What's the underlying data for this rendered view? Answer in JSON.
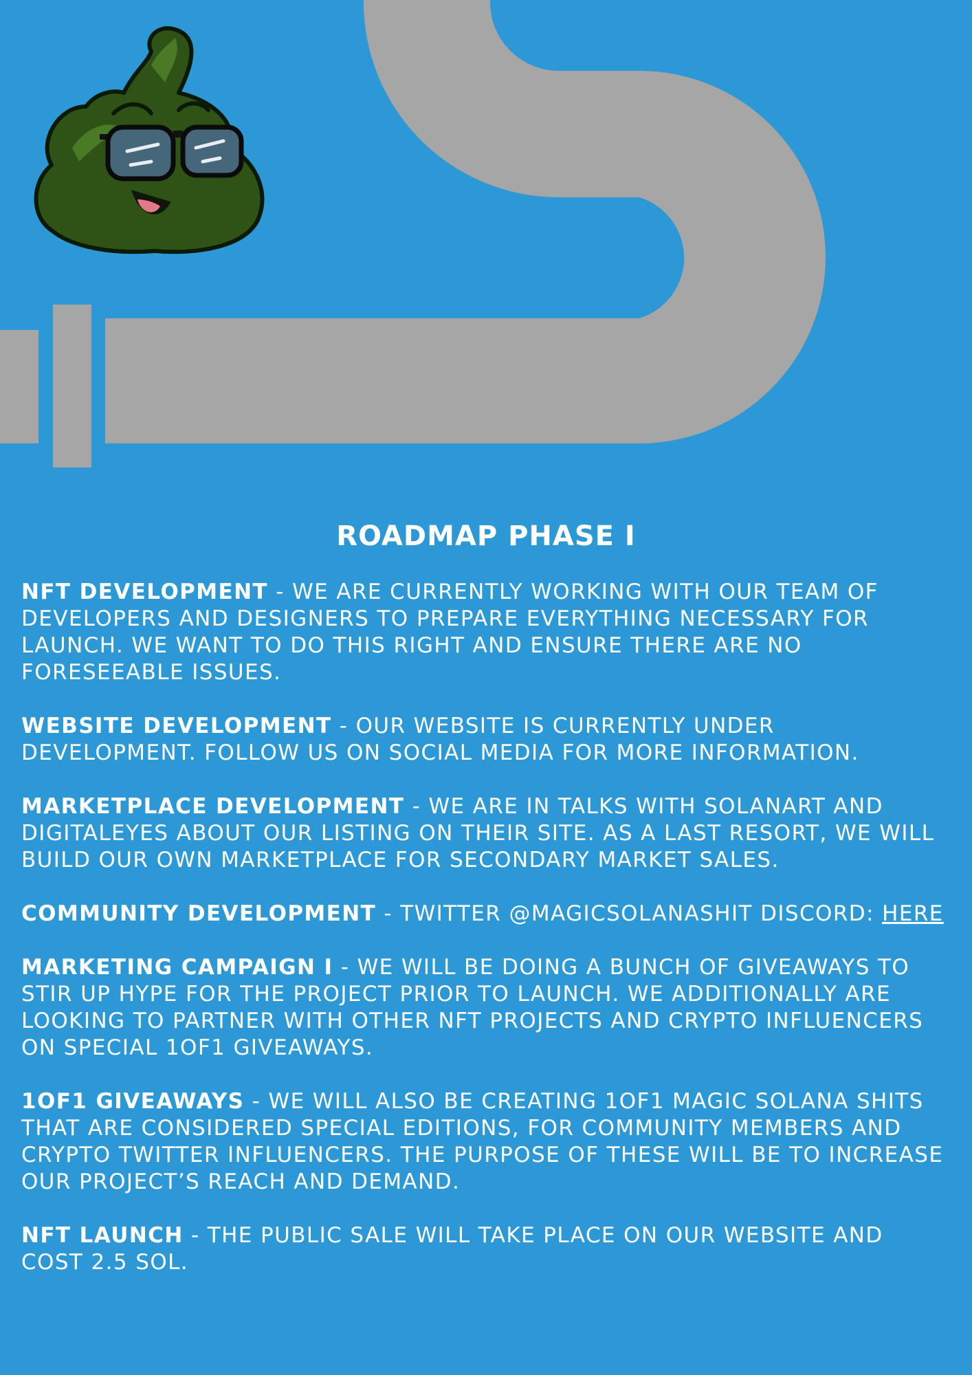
{
  "colors": {
    "background": "#2c98d6",
    "pipe": "#a6a6a6",
    "text": "#ffffff",
    "mascot_body": "#2f5217"
  },
  "mascot": {
    "icon": "poop-mascot-with-glasses-icon"
  },
  "title": "ROADMAP PHASE I",
  "sections": [
    {
      "label": "NFT DEVELOPMENT",
      "text": " - WE ARE CURRENTLY WORKING WITH OUR TEAM OF DEVELOPERS AND DESIGNERS TO PREPARE EVERYTHING NECESSARY FOR LAUNCH. WE WANT TO DO THIS RIGHT AND ENSURE THERE ARE NO FORESEEABLE ISSUES."
    },
    {
      "label": "WEBSITE DEVELOPMENT",
      "text": " - OUR WEBSITE IS CURRENTLY UNDER DEVELOPMENT. FOLLOW US ON SOCIAL MEDIA FOR MORE INFORMATION."
    },
    {
      "label": "MARKETPLACE DEVELOPMENT",
      "text": " - WE ARE IN TALKS WITH SOLANART AND DIGITALEYES ABOUT OUR LISTING ON THEIR SITE. AS A LAST RESORT, WE WILL BUILD OUR OWN MARKETPLACE FOR SECONDARY MARKET SALES."
    },
    {
      "label": "COMMUNITY DEVELOPMENT",
      "text": " - TWITTER @MAGICSOLANASHIT DISCORD: ",
      "link": "HERE"
    },
    {
      "label": "MARKETING CAMPAIGN I",
      "text": " - WE WILL BE DOING A BUNCH OF GIVEAWAYS TO STIR UP HYPE FOR THE PROJECT PRIOR TO LAUNCH. WE ADDITIONALLY ARE LOOKING TO PARTNER WITH OTHER NFT PROJECTS AND CRYPTO INFLUENCERS ON SPECIAL 1OF1 GIVEAWAYS."
    },
    {
      "label": "1OF1 GIVEAWAYS",
      "text": " - WE WILL ALSO BE CREATING 1OF1 MAGIC SOLANA SHITS THAT ARE CONSIDERED SPECIAL EDITIONS, FOR COMMUNITY MEMBERS AND CRYPTO TWITTER INFLUENCERS. THE PURPOSE OF THESE WILL BE TO INCREASE OUR PROJECT’S REACH AND DEMAND."
    },
    {
      "label": "NFT LAUNCH",
      "text": " - THE PUBLIC SALE WILL TAKE PLACE ON OUR WEBSITE AND COST 2.5 SOL."
    }
  ]
}
